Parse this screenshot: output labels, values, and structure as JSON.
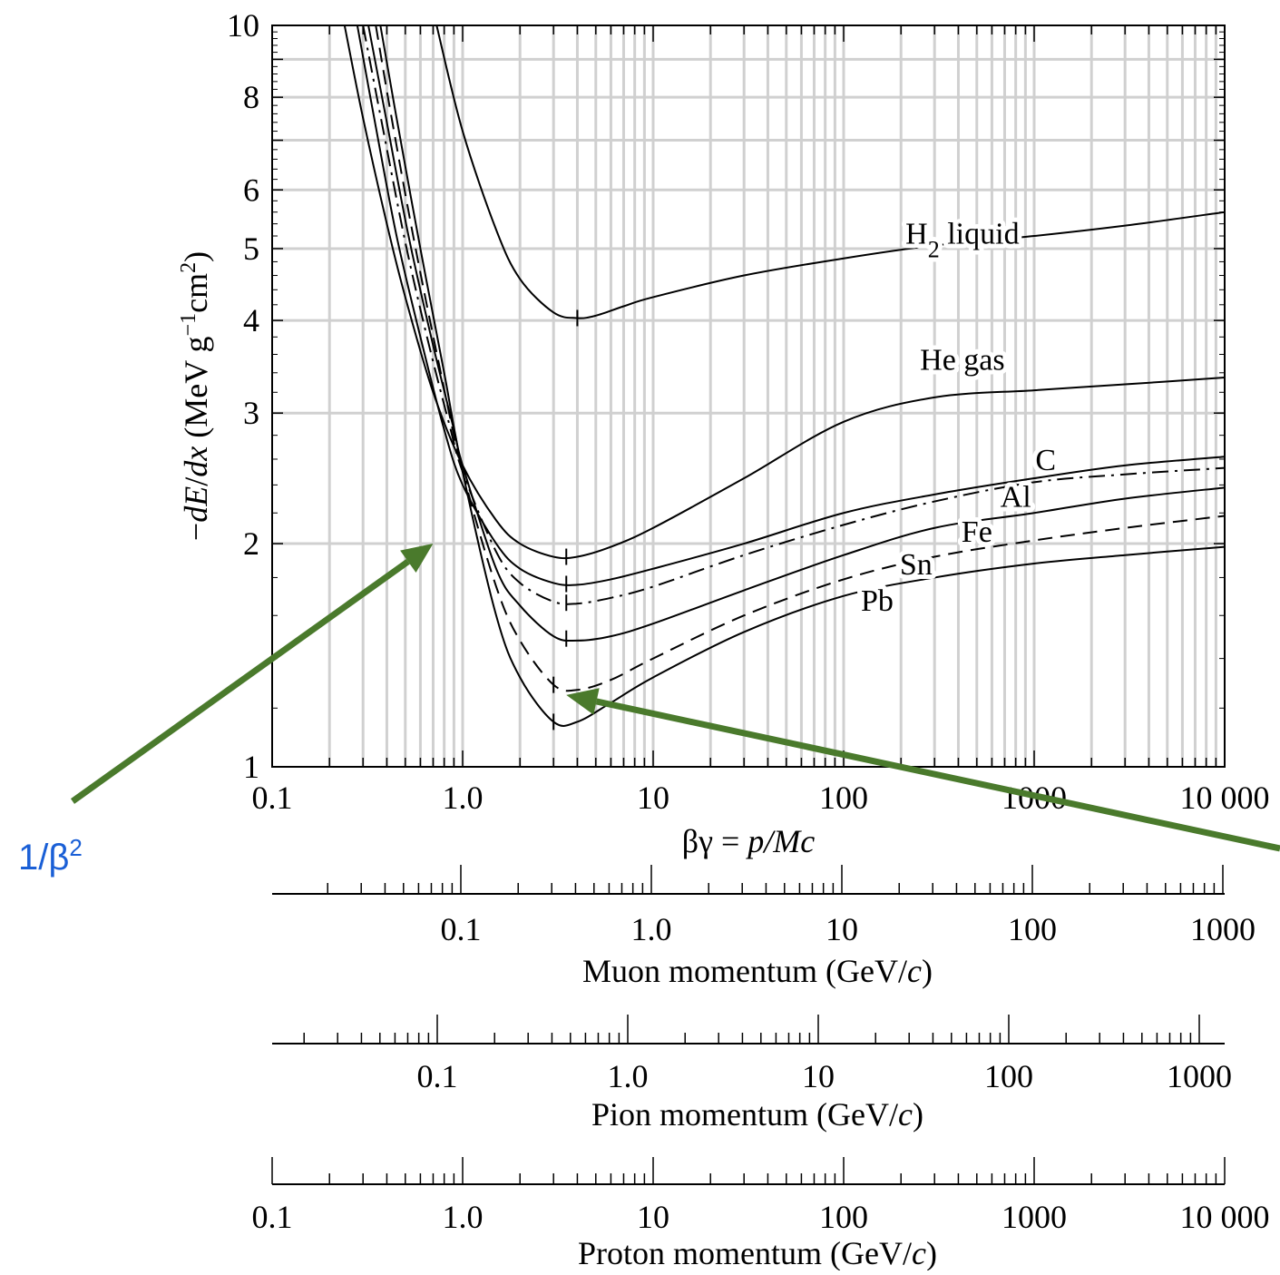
{
  "chart_data": {
    "type": "line",
    "scale": {
      "x": "log",
      "y": "log"
    },
    "xlim": [
      0.1,
      10000
    ],
    "ylim": [
      1,
      10
    ],
    "grid": true,
    "ylabel_parts": {
      "pre": "−",
      "dE": "dE",
      "slash": "/",
      "dx": "dx",
      "unit_open": " (MeV g",
      "exp1": "−1",
      "unit_mid": "cm",
      "exp2": "2",
      "unit_close": ")"
    },
    "xlabel_parts": {
      "pre": "βγ = ",
      "italic": "p/Mc"
    },
    "xticks": [
      {
        "v": 0.1,
        "label": "0.1"
      },
      {
        "v": 1,
        "label": "1.0"
      },
      {
        "v": 10,
        "label": "10"
      },
      {
        "v": 100,
        "label": "100"
      },
      {
        "v": 1000,
        "label": "1000"
      },
      {
        "v": 10000,
        "label": "10 000"
      }
    ],
    "yticks": [
      {
        "v": 1,
        "label": "1"
      },
      {
        "v": 2,
        "label": "2"
      },
      {
        "v": 3,
        "label": "3"
      },
      {
        "v": 4,
        "label": "4"
      },
      {
        "v": 5,
        "label": "5"
      },
      {
        "v": 6,
        "label": "6"
      },
      {
        "v": 8,
        "label": "8"
      },
      {
        "v": 10,
        "label": "10"
      }
    ],
    "series": [
      {
        "key": "h2",
        "label_main": "H",
        "label_sub": "2",
        "label_rest": " liquid",
        "label_at": [
          420,
          5.25
        ],
        "style": "solid",
        "min_at": 4.0,
        "points": [
          [
            0.73,
            10
          ],
          [
            1.0,
            7.2
          ],
          [
            1.5,
            5.3
          ],
          [
            2.0,
            4.55
          ],
          [
            3.0,
            4.1
          ],
          [
            4.0,
            4.03
          ],
          [
            5.0,
            4.06
          ],
          [
            7.0,
            4.18
          ],
          [
            10,
            4.3
          ],
          [
            30,
            4.6
          ],
          [
            100,
            4.85
          ],
          [
            300,
            5.05
          ],
          [
            1000,
            5.2
          ],
          [
            3000,
            5.37
          ],
          [
            10000,
            5.6
          ]
        ]
      },
      {
        "key": "he",
        "label_main": "He gas",
        "label_at": [
          420,
          3.55
        ],
        "style": "solid",
        "min_at": 3.5,
        "points": [
          [
            0.24,
            10
          ],
          [
            0.3,
            7.5
          ],
          [
            0.4,
            5.4
          ],
          [
            0.5,
            4.3
          ],
          [
            0.7,
            3.2
          ],
          [
            1.0,
            2.55
          ],
          [
            1.5,
            2.15
          ],
          [
            2.0,
            2.0
          ],
          [
            3.0,
            1.92
          ],
          [
            4.0,
            1.92
          ],
          [
            6.0,
            1.98
          ],
          [
            10,
            2.1
          ],
          [
            30,
            2.45
          ],
          [
            100,
            2.92
          ],
          [
            300,
            3.15
          ],
          [
            1000,
            3.22
          ],
          [
            3000,
            3.28
          ],
          [
            10000,
            3.35
          ]
        ]
      },
      {
        "key": "c",
        "label_main": "C",
        "label_at": [
          1150,
          2.6
        ],
        "style": "solid",
        "min_at": 3.5,
        "points": [
          [
            0.28,
            10
          ],
          [
            0.35,
            7.3
          ],
          [
            0.45,
            5.2
          ],
          [
            0.6,
            3.8
          ],
          [
            0.8,
            2.85
          ],
          [
            1.0,
            2.4
          ],
          [
            1.5,
            2.0
          ],
          [
            2.0,
            1.85
          ],
          [
            3.0,
            1.77
          ],
          [
            4.0,
            1.76
          ],
          [
            6.0,
            1.79
          ],
          [
            10,
            1.85
          ],
          [
            30,
            2.0
          ],
          [
            100,
            2.2
          ],
          [
            300,
            2.33
          ],
          [
            1000,
            2.45
          ],
          [
            3000,
            2.55
          ],
          [
            10000,
            2.62
          ]
        ]
      },
      {
        "key": "al",
        "label_main": "Al",
        "label_at": [
          800,
          2.32
        ],
        "style": "dashdot",
        "min_at": 3.5,
        "points": [
          [
            0.3,
            10
          ],
          [
            0.38,
            7.3
          ],
          [
            0.5,
            5.1
          ],
          [
            0.65,
            3.8
          ],
          [
            0.85,
            2.9
          ],
          [
            1.0,
            2.5
          ],
          [
            1.5,
            1.95
          ],
          [
            2.0,
            1.77
          ],
          [
            3.0,
            1.67
          ],
          [
            4.0,
            1.66
          ],
          [
            6.0,
            1.69
          ],
          [
            10,
            1.75
          ],
          [
            30,
            1.93
          ],
          [
            100,
            2.12
          ],
          [
            300,
            2.28
          ],
          [
            1000,
            2.42
          ],
          [
            3000,
            2.48
          ],
          [
            10000,
            2.53
          ]
        ]
      },
      {
        "key": "fe",
        "label_main": "Fe",
        "label_at": [
          500,
          2.08
        ],
        "style": "solid",
        "min_at": 3.5,
        "points": [
          [
            0.32,
            10
          ],
          [
            0.4,
            7.4
          ],
          [
            0.52,
            5.2
          ],
          [
            0.7,
            3.7
          ],
          [
            0.9,
            2.85
          ],
          [
            1.0,
            2.55
          ],
          [
            1.5,
            1.85
          ],
          [
            2.0,
            1.65
          ],
          [
            3.0,
            1.5
          ],
          [
            4.0,
            1.48
          ],
          [
            6.0,
            1.5
          ],
          [
            10,
            1.56
          ],
          [
            30,
            1.73
          ],
          [
            100,
            1.93
          ],
          [
            300,
            2.1
          ],
          [
            1000,
            2.2
          ],
          [
            3000,
            2.3
          ],
          [
            10000,
            2.38
          ]
        ]
      },
      {
        "key": "sn",
        "label_main": "Sn",
        "label_at": [
          240,
          1.88
        ],
        "style": "dashed",
        "min_at": 3.0,
        "points": [
          [
            0.35,
            10
          ],
          [
            0.42,
            7.6
          ],
          [
            0.55,
            5.2
          ],
          [
            0.75,
            3.5
          ],
          [
            1.0,
            2.5
          ],
          [
            1.5,
            1.75
          ],
          [
            2.0,
            1.48
          ],
          [
            3.0,
            1.29
          ],
          [
            4.0,
            1.27
          ],
          [
            6.0,
            1.31
          ],
          [
            10,
            1.4
          ],
          [
            30,
            1.6
          ],
          [
            100,
            1.79
          ],
          [
            300,
            1.92
          ],
          [
            1000,
            2.02
          ],
          [
            3000,
            2.1
          ],
          [
            10000,
            2.18
          ]
        ]
      },
      {
        "key": "pb",
        "label_main": "Pb",
        "label_at": [
          150,
          1.68
        ],
        "style": "solid",
        "min_at": 3.0,
        "points": [
          [
            0.37,
            10
          ],
          [
            0.45,
            7.5
          ],
          [
            0.6,
            5.0
          ],
          [
            0.8,
            3.4
          ],
          [
            1.0,
            2.5
          ],
          [
            1.5,
            1.6
          ],
          [
            2.0,
            1.32
          ],
          [
            3.0,
            1.15
          ],
          [
            4.0,
            1.15
          ],
          [
            6.0,
            1.22
          ],
          [
            10,
            1.32
          ],
          [
            30,
            1.52
          ],
          [
            100,
            1.7
          ],
          [
            300,
            1.8
          ],
          [
            1000,
            1.88
          ],
          [
            3000,
            1.93
          ],
          [
            10000,
            1.98
          ]
        ]
      }
    ],
    "momentum_axes": [
      {
        "key": "muon",
        "title_pre": "Muon momentum (GeV/",
        "title_c": "c",
        "title_post": ")",
        "decades": [
          0.01,
          10000
        ],
        "labels": [
          {
            "v": 0.1,
            "label": "0.1"
          },
          {
            "v": 1,
            "label": "1.0"
          },
          {
            "v": 10,
            "label": "10"
          },
          {
            "v": 100,
            "label": "100"
          },
          {
            "v": 1000,
            "label": "1000"
          }
        ]
      },
      {
        "key": "pion",
        "title_pre": "Pion momentum (GeV/",
        "title_c": "c",
        "title_post": ")",
        "decades": [
          0.01,
          10000
        ],
        "labels": [
          {
            "v": 0.1,
            "label": "0.1"
          },
          {
            "v": 1,
            "label": "1.0"
          },
          {
            "v": 10,
            "label": "10"
          },
          {
            "v": 100,
            "label": "100"
          },
          {
            "v": 1000,
            "label": "1000"
          }
        ]
      },
      {
        "key": "proton",
        "title_pre": "Proton momentum (GeV/",
        "title_c": "c",
        "title_post": ")",
        "decades": [
          0.1,
          10000
        ],
        "labels": [
          {
            "v": 0.1,
            "label": "0.1"
          },
          {
            "v": 1,
            "label": "1.0"
          },
          {
            "v": 10,
            "label": "10"
          },
          {
            "v": 100,
            "label": "100"
          },
          {
            "v": 1000,
            "label": "1000"
          },
          {
            "v": 10000,
            "label": "10 000"
          }
        ]
      }
    ],
    "annotations": [
      {
        "key": "inv-beta2",
        "text_main": "1/β",
        "text_sup": "2",
        "arrow_tip": [
          0.7,
          2.0
        ],
        "color": "#4a7a2c"
      },
      {
        "key": "min-ionizing",
        "arrow_tip": [
          3.5,
          1.25
        ],
        "color": "#4a7a2c"
      }
    ],
    "colors": {
      "grid": "#d0d0d0",
      "curves": "#000000",
      "arrow": "#4a7a2c",
      "annotation_text": "#1a5fd6"
    }
  }
}
